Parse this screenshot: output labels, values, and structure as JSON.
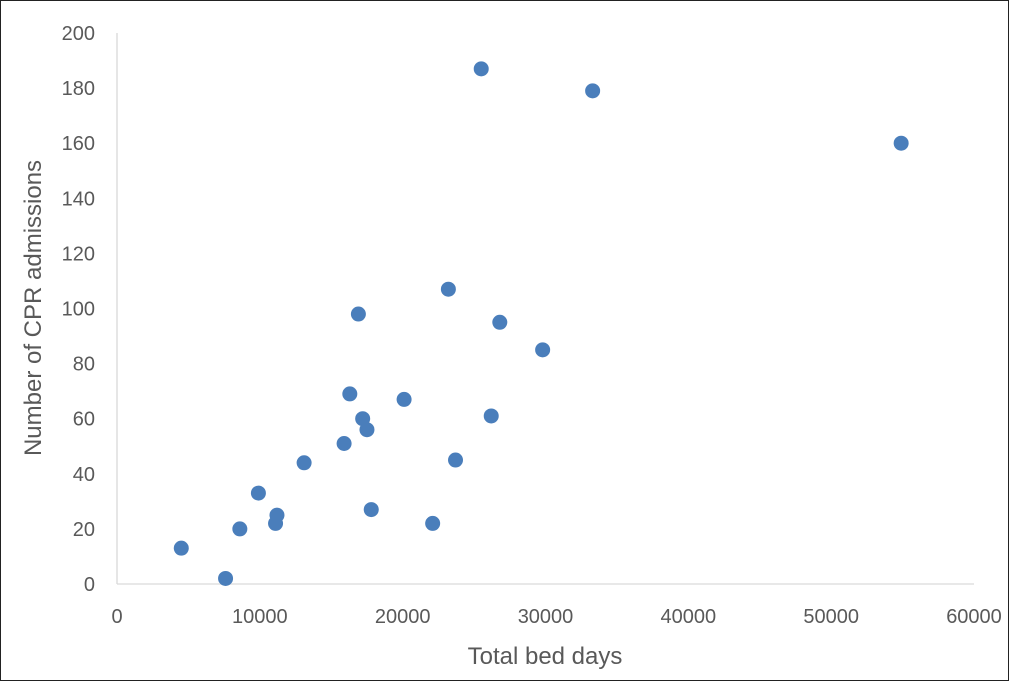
{
  "chart_data": {
    "type": "scatter",
    "title": "",
    "xlabel": "Total bed days",
    "ylabel": "Number of CPR admissions",
    "xlim": [
      0,
      60000
    ],
    "ylim": [
      0,
      200
    ],
    "x_ticks": [
      "0",
      "10000",
      "20000",
      "30000",
      "40000",
      "50000",
      "60000"
    ],
    "y_ticks": [
      "0",
      "20",
      "40",
      "60",
      "80",
      "100",
      "120",
      "140",
      "160",
      "180",
      "200"
    ],
    "grid": false,
    "legend": "none",
    "marker_color": "#4a7ebb",
    "series": [
      {
        "points": [
          {
            "x": 4500,
            "y": 13
          },
          {
            "x": 7600,
            "y": 2
          },
          {
            "x": 8600,
            "y": 20
          },
          {
            "x": 9900,
            "y": 33
          },
          {
            "x": 11100,
            "y": 22
          },
          {
            "x": 11200,
            "y": 25
          },
          {
            "x": 13100,
            "y": 44
          },
          {
            "x": 15900,
            "y": 51
          },
          {
            "x": 16300,
            "y": 69
          },
          {
            "x": 16900,
            "y": 98
          },
          {
            "x": 17200,
            "y": 60
          },
          {
            "x": 17500,
            "y": 56
          },
          {
            "x": 17800,
            "y": 27
          },
          {
            "x": 20100,
            "y": 67
          },
          {
            "x": 22100,
            "y": 22
          },
          {
            "x": 23200,
            "y": 107
          },
          {
            "x": 23700,
            "y": 45
          },
          {
            "x": 25500,
            "y": 187
          },
          {
            "x": 26200,
            "y": 61
          },
          {
            "x": 26800,
            "y": 95
          },
          {
            "x": 29800,
            "y": 85
          },
          {
            "x": 33300,
            "y": 179
          },
          {
            "x": 54900,
            "y": 160
          }
        ]
      }
    ]
  }
}
